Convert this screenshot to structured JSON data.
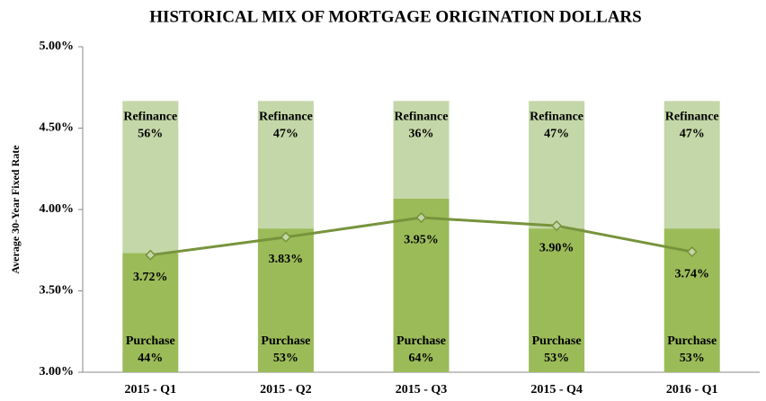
{
  "chart_data": {
    "type": "bar",
    "title": "HISTORICAL MIX OF MORTGAGE ORIGINATION DOLLARS",
    "y_label": "Average 30-Year Fixed Rate",
    "categories": [
      "2015 - Q1",
      "2015 - Q2",
      "2015 - Q3",
      "2015 - Q4",
      "2016 - Q1"
    ],
    "ylim": [
      3,
      5
    ],
    "yticks": [
      {
        "value": 3,
        "label": "3.00%"
      },
      {
        "value": 3.5,
        "label": "3.50%"
      },
      {
        "value": 4,
        "label": "4.00%"
      },
      {
        "value": 4.5,
        "label": "4.50%"
      },
      {
        "value": 5,
        "label": "5.00%"
      }
    ],
    "y2lim": [
      0,
      120
    ],
    "series": [
      {
        "name": "Purchase",
        "type": "bar",
        "axis": "y2",
        "color": "#9bbb59",
        "values": [
          44,
          53,
          64,
          53,
          53
        ],
        "value_labels": [
          "44%",
          "53%",
          "64%",
          "53%",
          "53%"
        ]
      },
      {
        "name": "Refinance",
        "type": "bar",
        "axis": "y2",
        "color": "#c4d7a8",
        "values": [
          56,
          47,
          36,
          47,
          47
        ],
        "value_labels": [
          "56%",
          "47%",
          "36%",
          "47%",
          "47%"
        ]
      },
      {
        "type": "line",
        "color": "#77933c",
        "values": [
          3.72,
          3.83,
          3.95,
          3.9,
          3.74
        ],
        "value_labels": [
          "3.72%",
          "3.83%",
          "3.95%",
          "3.90%",
          "3.74%"
        ]
      }
    ]
  }
}
